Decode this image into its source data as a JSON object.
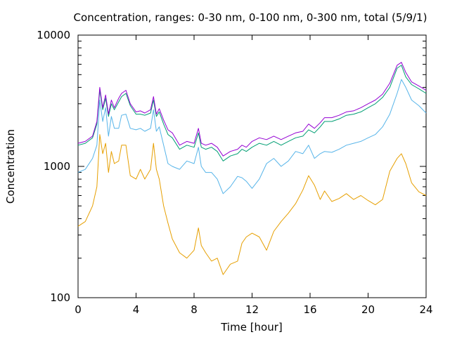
{
  "chart_data": {
    "type": "line",
    "title": "Concentration, ranges: 0-30 nm, 0-100 nm, 0-300 nm, total (5/9/1)",
    "xlabel": "Time [hour]",
    "ylabel": "Concentration",
    "xlim": [
      0,
      24
    ],
    "ylim": [
      100,
      10000
    ],
    "yscale": "log",
    "xticks": [
      0,
      4,
      8,
      12,
      16,
      20,
      24
    ],
    "xtick_labels": [
      "0",
      "4",
      "8",
      "12",
      "16",
      "20",
      "24"
    ],
    "yticks": [
      100,
      1000,
      10000
    ],
    "ytick_labels": [
      "100",
      "1000",
      "10000"
    ],
    "grid": false,
    "legend": "none",
    "x": [
      0,
      0.5,
      1.0,
      1.3,
      1.5,
      1.7,
      1.9,
      2.1,
      2.3,
      2.5,
      2.8,
      3.0,
      3.3,
      3.6,
      4.0,
      4.3,
      4.6,
      5.0,
      5.2,
      5.4,
      5.6,
      5.9,
      6.2,
      6.5,
      7.0,
      7.5,
      8.0,
      8.3,
      8.5,
      8.8,
      9.2,
      9.6,
      10.0,
      10.5,
      11.0,
      11.3,
      11.6,
      12.0,
      12.5,
      13.0,
      13.5,
      14.0,
      14.5,
      15.0,
      15.5,
      15.9,
      16.3,
      16.7,
      17.0,
      17.5,
      18.0,
      18.5,
      19.0,
      19.5,
      20.0,
      20.5,
      21.0,
      21.5,
      22.0,
      22.3,
      22.6,
      23.0,
      23.5,
      24.0
    ],
    "series": [
      {
        "color": "#e69f00",
        "values": [
          350,
          380,
          500,
          700,
          1750,
          1250,
          1500,
          900,
          1300,
          1050,
          1100,
          1450,
          1450,
          850,
          800,
          950,
          800,
          950,
          1500,
          950,
          800,
          500,
          370,
          280,
          220,
          200,
          230,
          340,
          250,
          220,
          190,
          200,
          150,
          180,
          190,
          260,
          290,
          310,
          290,
          230,
          320,
          380,
          440,
          520,
          660,
          850,
          720,
          560,
          650,
          540,
          570,
          620,
          560,
          600,
          550,
          510,
          560,
          920,
          1150,
          1250,
          1050,
          750,
          640,
          600
        ]
      },
      {
        "color": "#56b4e9",
        "values": [
          900,
          950,
          1150,
          1450,
          3200,
          2200,
          2800,
          1700,
          2400,
          1950,
          1950,
          2450,
          2500,
          1950,
          1900,
          1950,
          1850,
          1950,
          2700,
          1850,
          2000,
          1450,
          1050,
          1000,
          950,
          1100,
          1050,
          1400,
          1000,
          900,
          900,
          800,
          620,
          700,
          840,
          820,
          770,
          680,
          800,
          1050,
          1150,
          1000,
          1100,
          1300,
          1250,
          1450,
          1150,
          1250,
          1300,
          1280,
          1350,
          1450,
          1500,
          1550,
          1650,
          1750,
          2000,
          2500,
          3600,
          4600,
          4000,
          3200,
          2900,
          2550
        ]
      },
      {
        "color": "#009e73",
        "values": [
          1450,
          1500,
          1650,
          2100,
          3800,
          2700,
          3300,
          2400,
          3000,
          2700,
          3100,
          3400,
          3600,
          2900,
          2500,
          2500,
          2450,
          2550,
          3200,
          2400,
          2600,
          2100,
          1750,
          1650,
          1350,
          1450,
          1400,
          1800,
          1400,
          1350,
          1400,
          1300,
          1100,
          1200,
          1250,
          1350,
          1300,
          1400,
          1500,
          1450,
          1550,
          1450,
          1550,
          1650,
          1700,
          1900,
          1800,
          2000,
          2200,
          2200,
          2300,
          2450,
          2500,
          2600,
          2800,
          3000,
          3350,
          4000,
          5600,
          5900,
          4800,
          4200,
          3900,
          3600
        ]
      },
      {
        "color": "#9400d3",
        "values": [
          1500,
          1550,
          1700,
          2200,
          4000,
          2800,
          3500,
          2500,
          3200,
          2800,
          3300,
          3600,
          3800,
          3000,
          2600,
          2650,
          2550,
          2700,
          3400,
          2500,
          2750,
          2250,
          1900,
          1800,
          1450,
          1550,
          1500,
          1950,
          1500,
          1450,
          1500,
          1400,
          1200,
          1300,
          1350,
          1450,
          1400,
          1550,
          1650,
          1600,
          1700,
          1600,
          1700,
          1800,
          1850,
          2100,
          1950,
          2150,
          2350,
          2350,
          2450,
          2600,
          2650,
          2800,
          3000,
          3200,
          3550,
          4300,
          5900,
          6200,
          5200,
          4400,
          4100,
          3800
        ]
      }
    ]
  }
}
